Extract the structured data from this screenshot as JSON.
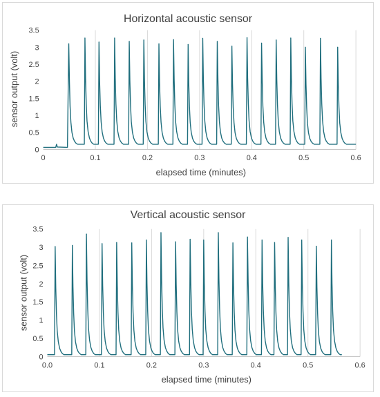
{
  "colors": {
    "series": "#1f6e7d"
  },
  "chart_data": [
    {
      "type": "line",
      "title": "Horizontal acoustic sensor",
      "xlabel": "elapsed time (minutes)",
      "ylabel": "sensor output (volt)",
      "xlim": [
        0,
        0.6
      ],
      "ylim": [
        0,
        3.5
      ],
      "xticks": [
        0,
        0.1,
        0.2,
        0.3,
        0.4,
        0.5,
        0.6
      ],
      "xtick_labels": [
        "0",
        "0.1",
        "0.2",
        "0.3",
        "0.4",
        "0.5",
        "0.6"
      ],
      "yticks": [
        0,
        0.5,
        1,
        1.5,
        2,
        2.5,
        3,
        3.5
      ],
      "ytick_labels": [
        "0",
        "0.5",
        "1",
        "1.5",
        "2",
        "2.5",
        "3",
        "3.5"
      ],
      "grid": "vertical",
      "baseline_before_first_peak": 0.06,
      "baseline_after_first_peak": 0.15,
      "data_end": 0.6,
      "peaks": [
        {
          "x": 0.049,
          "y": 3.1
        },
        {
          "x": 0.08,
          "y": 3.27
        },
        {
          "x": 0.107,
          "y": 3.15
        },
        {
          "x": 0.137,
          "y": 3.27
        },
        {
          "x": 0.165,
          "y": 3.17
        },
        {
          "x": 0.193,
          "y": 3.21
        },
        {
          "x": 0.222,
          "y": 3.1
        },
        {
          "x": 0.25,
          "y": 3.22
        },
        {
          "x": 0.278,
          "y": 3.08
        },
        {
          "x": 0.306,
          "y": 3.26
        },
        {
          "x": 0.334,
          "y": 3.17
        },
        {
          "x": 0.362,
          "y": 3.03
        },
        {
          "x": 0.391,
          "y": 3.28
        },
        {
          "x": 0.419,
          "y": 3.12
        },
        {
          "x": 0.447,
          "y": 3.21
        },
        {
          "x": 0.475,
          "y": 3.27
        },
        {
          "x": 0.503,
          "y": 3.0
        },
        {
          "x": 0.532,
          "y": 3.26
        },
        {
          "x": 0.565,
          "y": 3.0
        }
      ]
    },
    {
      "type": "line",
      "title": "Vertical acoustic sensor",
      "xlabel": "elapsed time (minutes)",
      "ylabel": "sensor output (volt)",
      "xlim": [
        0,
        0.6
      ],
      "ylim": [
        0,
        3.5
      ],
      "xticks": [
        0,
        0.1,
        0.2,
        0.3,
        0.4,
        0.5,
        0.6
      ],
      "xtick_labels": [
        "0.0",
        "0.1",
        "0.2",
        "0.3",
        "0.4",
        "0.5",
        "0.6"
      ],
      "yticks": [
        0,
        0.5,
        1,
        1.5,
        2,
        2.5,
        3,
        3.5
      ],
      "ytick_labels": [
        "0",
        "0.5",
        "1",
        "1.5",
        "2",
        "2.5",
        "3",
        "3.5"
      ],
      "grid": "vertical",
      "baseline": 0.05,
      "data_start": 0.0,
      "data_end": 0.565,
      "peaks": [
        {
          "x": 0.015,
          "y": 3.02
        },
        {
          "x": 0.048,
          "y": 3.05
        },
        {
          "x": 0.075,
          "y": 3.36
        },
        {
          "x": 0.105,
          "y": 3.1
        },
        {
          "x": 0.133,
          "y": 3.13
        },
        {
          "x": 0.162,
          "y": 3.12
        },
        {
          "x": 0.19,
          "y": 3.2
        },
        {
          "x": 0.218,
          "y": 3.4
        },
        {
          "x": 0.246,
          "y": 3.15
        },
        {
          "x": 0.274,
          "y": 3.22
        },
        {
          "x": 0.3,
          "y": 3.2
        },
        {
          "x": 0.328,
          "y": 3.4
        },
        {
          "x": 0.356,
          "y": 3.12
        },
        {
          "x": 0.384,
          "y": 3.28
        },
        {
          "x": 0.412,
          "y": 3.2
        },
        {
          "x": 0.436,
          "y": 3.13
        },
        {
          "x": 0.462,
          "y": 3.27
        },
        {
          "x": 0.488,
          "y": 3.2
        },
        {
          "x": 0.516,
          "y": 3.03
        },
        {
          "x": 0.545,
          "y": 3.2
        }
      ]
    }
  ]
}
